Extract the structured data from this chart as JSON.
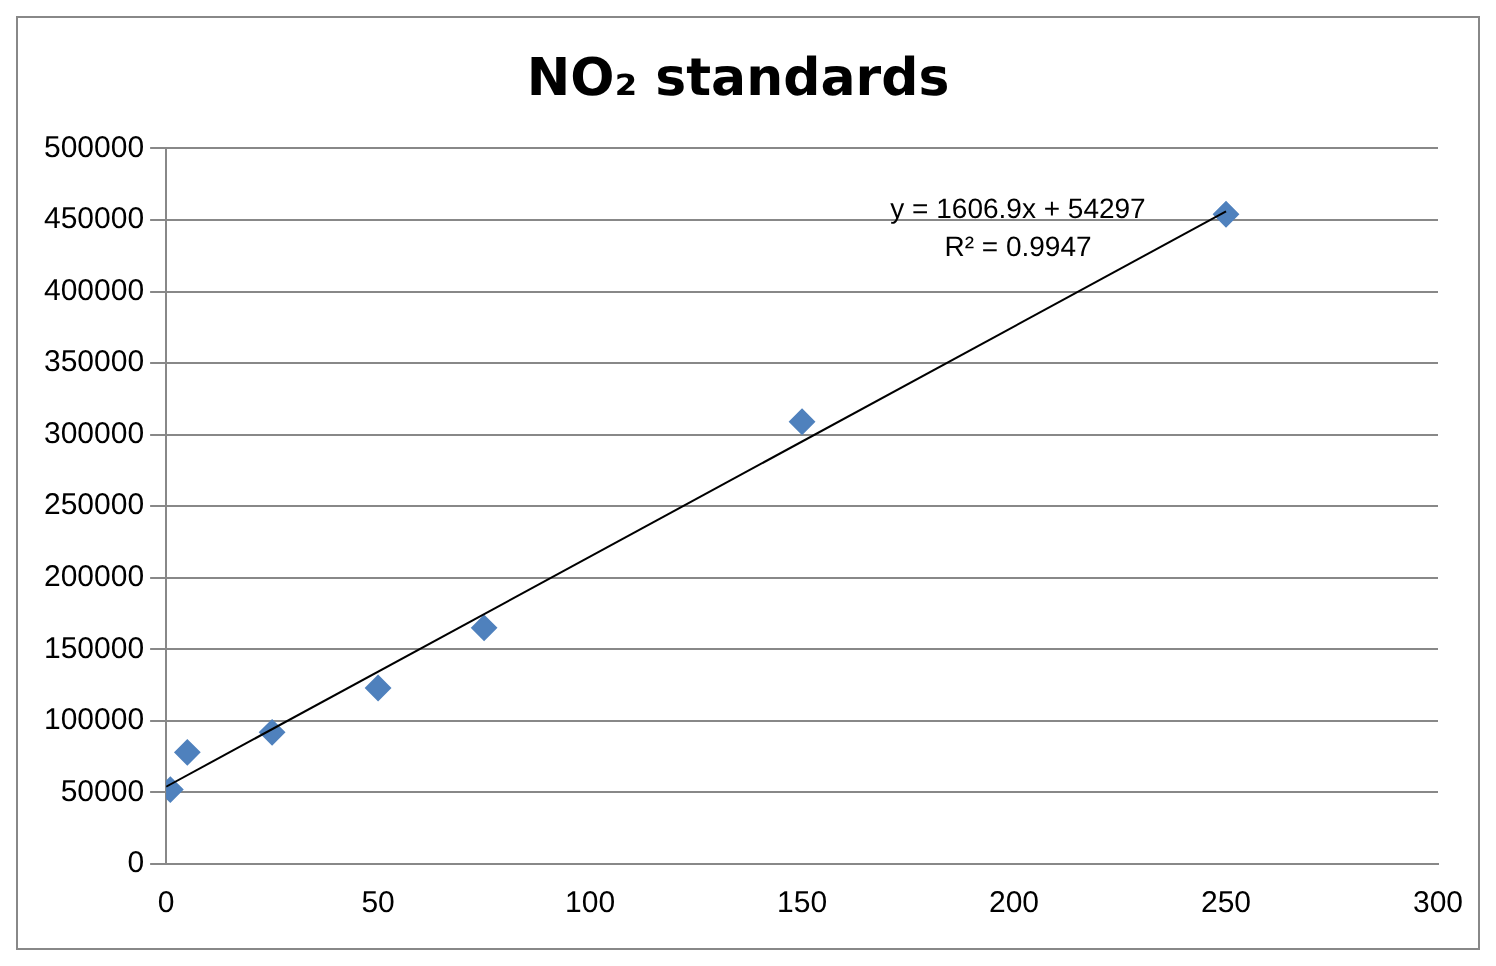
{
  "chart_data": {
    "type": "scatter",
    "title": "NO₂ standards",
    "xlim": [
      0,
      300
    ],
    "xticks": [
      0,
      50,
      100,
      150,
      200,
      250,
      300
    ],
    "ylim": [
      0,
      500000
    ],
    "yticks": [
      0,
      50000,
      100000,
      150000,
      200000,
      250000,
      300000,
      350000,
      400000,
      450000,
      500000
    ],
    "grid": "y",
    "legend": false,
    "series": [
      {
        "type": "scatter",
        "color": "#4f81bd",
        "marker": "diamond",
        "x": [
          1,
          5,
          25,
          50,
          75,
          150,
          250
        ],
        "values": [
          52000,
          78000,
          92000,
          123000,
          165000,
          309000,
          454000
        ]
      },
      {
        "type": "line",
        "color": "#000000",
        "marker": "none",
        "line_style": "solid",
        "x": [
          0,
          250
        ],
        "values": [
          54000,
          456000
        ]
      }
    ],
    "annotations": [
      "y = 1606.9x + 54297",
      "R² = 0.9947"
    ]
  }
}
